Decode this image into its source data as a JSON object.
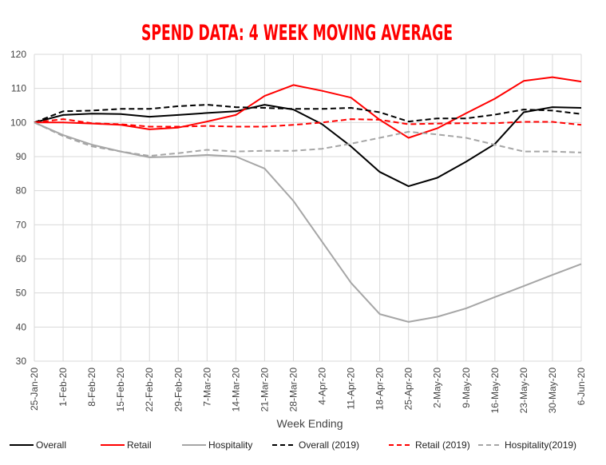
{
  "chart_data": {
    "type": "line",
    "title": "SPEND DATA: 4 WEEK MOVING AVERAGE",
    "xlabel": "Week Ending",
    "ylabel": "",
    "ylim": [
      30,
      120
    ],
    "yticks": [
      30,
      40,
      50,
      60,
      70,
      80,
      90,
      100,
      110,
      120
    ],
    "grid": true,
    "legend_position": "bottom",
    "categories": [
      "25-Jan-20",
      "1-Feb-20",
      "8-Feb-20",
      "15-Feb-20",
      "22-Feb-20",
      "29-Feb-20",
      "7-Mar-20",
      "14-Mar-20",
      "21-Mar-20",
      "28-Mar-20",
      "4-Apr-20",
      "11-Apr-20",
      "18-Apr-20",
      "25-Apr-20",
      "2-May-20",
      "9-May-20",
      "16-May-20",
      "23-May-20",
      "30-May-20",
      "6-Jun-20"
    ],
    "series": [
      {
        "name": "Overall",
        "color": "#000000",
        "dashed": false,
        "values": [
          100,
          102.2,
          102.6,
          102.5,
          101.7,
          102.2,
          102.8,
          103.3,
          105.2,
          103.8,
          99.5,
          93,
          85.5,
          81.3,
          83.8,
          88.5,
          93.7,
          103,
          104.5,
          104.3
        ]
      },
      {
        "name": "Retail",
        "color": "#ff0000",
        "dashed": false,
        "values": [
          100,
          100,
          99.7,
          99.3,
          98,
          98.5,
          100.3,
          102.2,
          107.8,
          111,
          109.3,
          107.3,
          100.8,
          95.5,
          98.3,
          102.7,
          107,
          112.2,
          113.3,
          112
        ]
      },
      {
        "name": "Hospitality",
        "color": "#a6a6a6",
        "dashed": false,
        "values": [
          100,
          96.3,
          93.5,
          91.5,
          89.8,
          90,
          90.5,
          90,
          86.5,
          77,
          65,
          53,
          43.8,
          41.5,
          43,
          45.5,
          48.8,
          52,
          55.3,
          58.5
        ]
      },
      {
        "name": "Overall (2019)",
        "color": "#000000",
        "dashed": true,
        "values": [
          100,
          103.3,
          103.5,
          104,
          104,
          104.8,
          105.2,
          104.5,
          104.3,
          104,
          104,
          104.3,
          103,
          100.3,
          101.2,
          101.2,
          102.3,
          103.8,
          103.5,
          102.5
        ]
      },
      {
        "name": "Retail (2019)",
        "color": "#ff0000",
        "dashed": true,
        "values": [
          100,
          101,
          99.8,
          99.5,
          98.8,
          98.8,
          99,
          98.8,
          98.8,
          99.3,
          100,
          101,
          100.8,
          99.5,
          99.7,
          99.8,
          99.8,
          100.2,
          100.2,
          99.3
        ]
      },
      {
        "name": "Hospitality(2019)",
        "color": "#a6a6a6",
        "dashed": true,
        "values": [
          100,
          96,
          93,
          91.5,
          90.2,
          91,
          92,
          91.5,
          91.7,
          91.7,
          92.3,
          93.8,
          95.5,
          97.3,
          96.5,
          95.5,
          93.5,
          91.5,
          91.5,
          91.2
        ]
      }
    ]
  }
}
